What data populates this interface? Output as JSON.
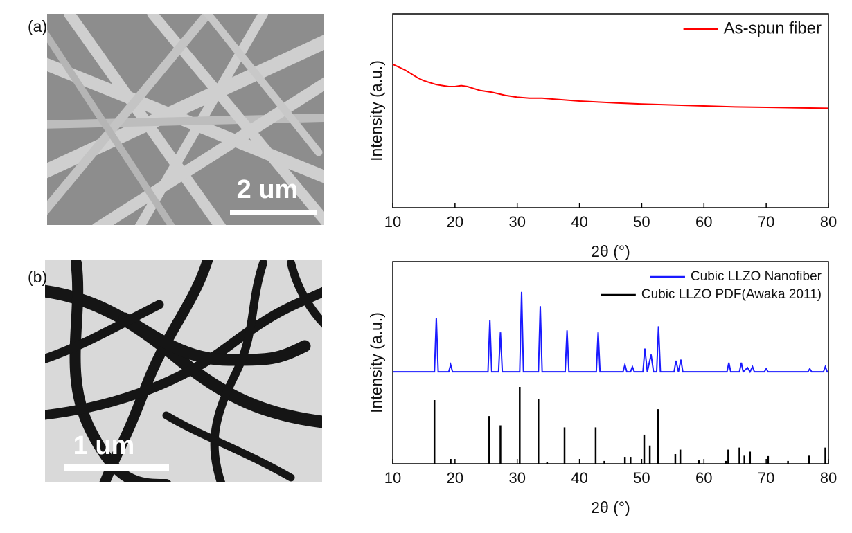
{
  "panels": [
    {
      "label": "(a)",
      "scale_bar": "2 um"
    },
    {
      "label": "(b)",
      "scale_bar": "1 um"
    }
  ],
  "chart_data": [
    {
      "type": "line",
      "xlabel": "2θ (°)",
      "ylabel": "Intensity (a.u.)",
      "xlim": [
        10,
        80
      ],
      "ylim": [
        0,
        100
      ],
      "xticks": [
        10,
        20,
        30,
        40,
        50,
        60,
        70,
        80
      ],
      "legend": "upper right",
      "series": [
        {
          "name": "As-spun fiber",
          "color": "#ff0000",
          "kind": "line",
          "x": [
            10,
            11,
            12,
            13,
            14,
            15,
            16,
            17,
            18,
            19,
            20,
            21,
            22,
            23,
            24,
            25,
            26,
            28,
            30,
            32,
            34,
            36,
            38,
            40,
            43,
            46,
            50,
            55,
            60,
            65,
            70,
            75,
            80
          ],
          "values": [
            74,
            72.5,
            71,
            69,
            67,
            65.5,
            64.5,
            63.5,
            63,
            62.5,
            62.5,
            63,
            62.5,
            61.5,
            60.5,
            60,
            59.5,
            58,
            57,
            56.5,
            56.5,
            56,
            55.5,
            55,
            54.5,
            54,
            53.5,
            53,
            52.5,
            52,
            51.8,
            51.5,
            51.3
          ]
        }
      ]
    },
    {
      "type": "line",
      "xlabel": "2θ (°)",
      "ylabel": "Intensity (a.u.)",
      "xlim": [
        10,
        80
      ],
      "ylim": [
        0,
        100
      ],
      "xticks": [
        10,
        20,
        30,
        40,
        50,
        60,
        70,
        80
      ],
      "legend": "upper right",
      "series": [
        {
          "name": "Cubic LLZO Nanofiber",
          "color": "#1a1aff",
          "kind": "line",
          "x": [
            10,
            16.7,
            17,
            17.3,
            19.0,
            19.3,
            19.6,
            25.3,
            25.6,
            25.9,
            27.0,
            27.3,
            27.6,
            30.4,
            30.7,
            31.0,
            33.4,
            33.7,
            34.0,
            37.7,
            38.0,
            38.3,
            42.7,
            43.0,
            43.3,
            47.0,
            47.3,
            47.6,
            48.2,
            48.5,
            48.8,
            50.2,
            50.5,
            50.9,
            51.5,
            51.9,
            52.4,
            52.7,
            53.0,
            55.2,
            55.5,
            55.9,
            56.3,
            56.6,
            63.7,
            64.0,
            64.3,
            65.7,
            66.0,
            66.3,
            67.0,
            67.4,
            67.8,
            68.1,
            69.7,
            70.0,
            70.3,
            76.7,
            77.0,
            77.3,
            79.2,
            79.5,
            79.8,
            80
          ],
          "values": [
            45.5,
            45.5,
            72,
            45.5,
            45.5,
            49,
            45.5,
            45.5,
            71,
            45.5,
            45.5,
            65,
            45.5,
            45.5,
            85,
            45.5,
            45.5,
            78,
            45.5,
            45.5,
            66,
            45.5,
            45.5,
            65,
            45.5,
            45.5,
            49,
            45.5,
            45.5,
            48,
            45.5,
            45.5,
            57,
            45.5,
            54,
            45.5,
            45.5,
            68,
            45.5,
            45.5,
            51,
            45.5,
            51.5,
            45.5,
            45.5,
            50,
            45.5,
            45.5,
            50,
            45.5,
            47.5,
            45.5,
            48,
            45.5,
            45.5,
            47,
            45.5,
            45.5,
            47,
            45.5,
            45.5,
            48,
            45.5,
            45.5
          ]
        },
        {
          "name": "Cubic LLZO PDF(Awaka 2011)",
          "color": "#000000",
          "kind": "stem",
          "x": [
            16.7,
            19.3,
            25.5,
            27.3,
            30.4,
            33.4,
            34.8,
            37.6,
            42.6,
            44,
            47.3,
            48.2,
            50.4,
            51.3,
            52.6,
            55.4,
            56.2,
            59.2,
            63.5,
            63.9,
            65.7,
            66.5,
            67.4,
            70.3,
            73.5,
            76.9,
            79.5
          ],
          "values": [
            31.5,
            2.4,
            23.6,
            19,
            38,
            32,
            1,
            18,
            18,
            1.4,
            3.4,
            3.4,
            14.4,
            9,
            27,
            4.8,
            7,
            1.7,
            1.4,
            7,
            8,
            4,
            6,
            3.8,
            1.4,
            4,
            8
          ]
        }
      ]
    }
  ]
}
